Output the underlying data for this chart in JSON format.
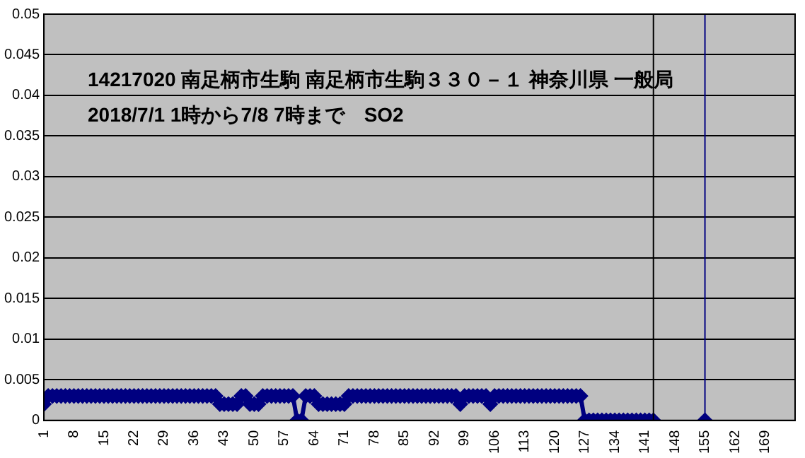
{
  "chart_data": {
    "type": "line",
    "title": "14217020 南足柄市生駒 南足柄市生駒３３０－１ 神奈川県 一般局",
    "subtitle": "2018/7/1 1時から7/8 7時まで　SO2",
    "x": [
      1,
      2,
      3,
      4,
      5,
      6,
      7,
      8,
      9,
      10,
      11,
      12,
      13,
      14,
      15,
      16,
      17,
      18,
      19,
      20,
      21,
      22,
      23,
      24,
      25,
      26,
      27,
      28,
      29,
      30,
      31,
      32,
      33,
      34,
      35,
      36,
      37,
      38,
      39,
      40,
      41,
      42,
      43,
      44,
      45,
      46,
      47,
      48,
      49,
      50,
      51,
      52,
      53,
      54,
      55,
      56,
      57,
      58,
      59,
      60,
      61,
      62,
      63,
      64,
      65,
      66,
      67,
      68,
      69,
      70,
      71,
      72,
      73,
      74,
      75,
      76,
      77,
      78,
      79,
      80,
      81,
      82,
      83,
      84,
      85,
      86,
      87,
      88,
      89,
      90,
      91,
      92,
      93,
      94,
      95,
      96,
      97,
      98,
      99,
      100,
      101,
      102,
      103,
      104,
      105,
      106,
      107,
      108,
      109,
      110,
      111,
      112,
      113,
      114,
      115,
      116,
      117,
      118,
      119,
      120,
      121,
      122,
      123,
      124,
      125,
      126,
      127,
      128,
      129,
      130,
      131,
      132,
      133,
      134,
      135,
      136,
      137,
      138,
      139,
      140,
      141,
      142,
      143,
      144,
      145,
      146,
      147,
      148,
      149,
      150,
      151,
      152,
      153,
      154,
      155
    ],
    "series": [
      {
        "color": "#000080",
        "values": [
          0.002,
          0.003,
          0.003,
          0.003,
          0.003,
          0.003,
          0.003,
          0.003,
          0.003,
          0.003,
          0.003,
          0.003,
          0.003,
          0.003,
          0.003,
          0.003,
          0.003,
          0.003,
          0.003,
          0.003,
          0.003,
          0.003,
          0.003,
          0.003,
          0.003,
          0.003,
          0.003,
          0.003,
          0.003,
          0.003,
          0.003,
          0.003,
          0.003,
          0.003,
          0.003,
          0.003,
          0.003,
          0.003,
          0.003,
          0.003,
          0.003,
          0.002,
          0.002,
          0.002,
          0.002,
          0.002,
          0.003,
          0.003,
          0.002,
          0.002,
          0.002,
          0.003,
          0.003,
          0.003,
          0.003,
          0.003,
          0.003,
          0.003,
          0.003,
          0,
          0,
          0.003,
          0.003,
          0.003,
          0.002,
          0.002,
          0.002,
          0.002,
          0.002,
          0.002,
          0.002,
          0.003,
          0.003,
          0.003,
          0.003,
          0.003,
          0.003,
          0.003,
          0.003,
          0.003,
          0.003,
          0.003,
          0.003,
          0.003,
          0.003,
          0.003,
          0.003,
          0.003,
          0.003,
          0.003,
          0.003,
          0.003,
          0.003,
          0.003,
          0.003,
          0.003,
          0.003,
          0.002,
          0.003,
          0.003,
          0.003,
          0.003,
          0.003,
          0.003,
          0.002,
          0.003,
          0.003,
          0.003,
          0.003,
          0.003,
          0.003,
          0.003,
          0.003,
          0.003,
          0.003,
          0.003,
          0.003,
          0.003,
          0.003,
          0.003,
          0.003,
          0.003,
          0.003,
          0.003,
          0.003,
          0.003,
          0,
          0,
          0,
          0,
          0,
          0,
          0,
          0,
          0,
          0,
          0,
          0,
          0,
          0,
          0,
          0,
          0,
          null,
          null,
          null,
          null,
          null,
          null,
          null,
          null,
          null,
          null,
          null,
          0
        ]
      }
    ],
    "xlim": [
      1,
      176
    ],
    "xticks": [
      1,
      8,
      15,
      22,
      29,
      36,
      43,
      50,
      57,
      64,
      71,
      78,
      85,
      92,
      99,
      106,
      113,
      120,
      127,
      134,
      141,
      148,
      155,
      162,
      169
    ],
    "ylim": [
      0,
      0.05
    ],
    "yticks": [
      0,
      0.005,
      0.01,
      0.015,
      0.02,
      0.025,
      0.03,
      0.035,
      0.04,
      0.045,
      0.05
    ],
    "ref_lines": [
      {
        "axis": "x",
        "value": 143,
        "color": "#000000"
      },
      {
        "axis": "x",
        "value": 155,
        "color": "#000080"
      }
    ],
    "grid": "y",
    "legend": false,
    "marker": "diamond",
    "line_style": "solid"
  }
}
